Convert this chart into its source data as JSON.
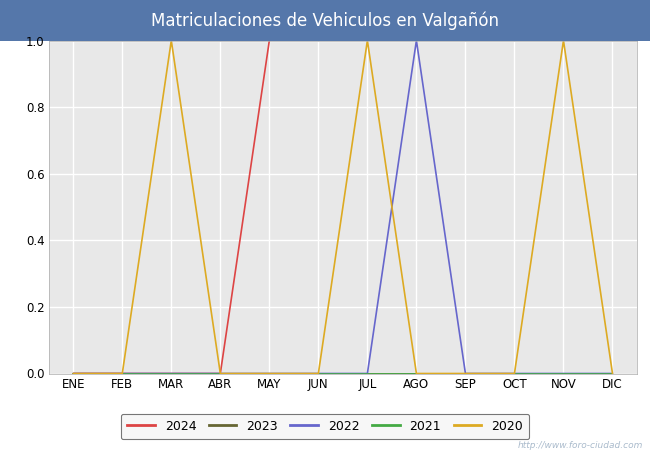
{
  "title": "Matriculaciones de Vehiculos en Valgañón",
  "title_color": "#ffffff",
  "title_bg_color": "#5577aa",
  "months": [
    "ENE",
    "FEB",
    "MAR",
    "ABR",
    "MAY",
    "JUN",
    "JUL",
    "AGO",
    "SEP",
    "OCT",
    "NOV",
    "DIC"
  ],
  "month_indices": [
    1,
    2,
    3,
    4,
    5,
    6,
    7,
    8,
    9,
    10,
    11,
    12
  ],
  "series": {
    "2024": {
      "color": "#dd4444",
      "data": [
        0,
        0,
        0,
        0,
        1,
        null,
        null,
        null,
        null,
        null,
        null,
        null
      ]
    },
    "2023": {
      "color": "#666633",
      "data": [
        0,
        0,
        0,
        0,
        0,
        0,
        0,
        0,
        0,
        0,
        0,
        0
      ]
    },
    "2022": {
      "color": "#6666cc",
      "data": [
        0,
        0,
        0,
        0,
        0,
        0,
        0,
        1,
        0,
        0,
        0,
        0
      ]
    },
    "2021": {
      "color": "#44aa44",
      "data": [
        0,
        0,
        0,
        0,
        0,
        0,
        0,
        0,
        0,
        0,
        0,
        0
      ]
    },
    "2020": {
      "color": "#ddaa22",
      "data": [
        0,
        0,
        1,
        0,
        0,
        0,
        1,
        0,
        0,
        0,
        1,
        0
      ]
    }
  },
  "legend_order": [
    "2024",
    "2023",
    "2022",
    "2021",
    "2020"
  ],
  "ylim": [
    0,
    1.0
  ],
  "yticks": [
    0.0,
    0.2,
    0.4,
    0.6,
    0.8,
    1.0
  ],
  "plot_bg_color": "#e8e8e8",
  "grid_color": "#ffffff",
  "fig_bg_color": "#ffffff",
  "watermark_text": "http://www.foro-ciudad.com",
  "watermark_color": "#aabbcc",
  "title_fontsize": 12,
  "tick_fontsize": 8.5,
  "legend_fontsize": 9
}
